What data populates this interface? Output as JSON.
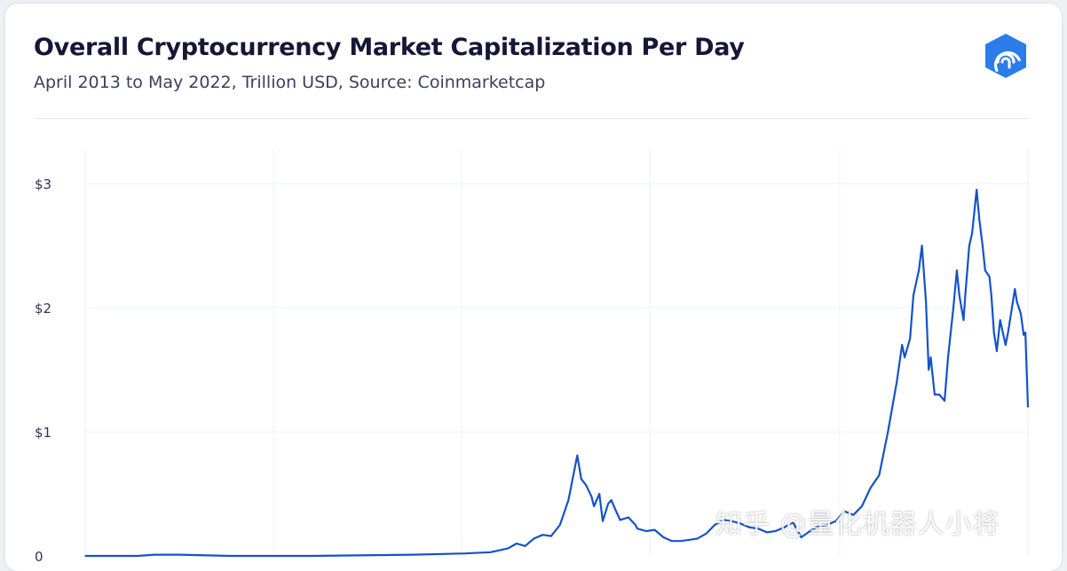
{
  "header": {
    "title": "Overall Cryptocurrency Market Capitalization Per Day",
    "subtitle": "April 2013 to May 2022, Trillion USD, Source: Coinmarketcap",
    "logo_icon": "coin-spiral-hexagon-icon"
  },
  "watermark": "知乎 @量化机器人小将",
  "colors": {
    "line": "#1652c9",
    "logo": "#2b7de9",
    "title": "#141736",
    "grid": "#eef0f6"
  },
  "chart_data": {
    "type": "line",
    "title": "Overall Cryptocurrency Market Capitalization Per Day",
    "subtitle": "April 2013 to May 2022, Trillion USD, Source: Coinmarketcap",
    "xlabel": "",
    "ylabel": "",
    "x_range": [
      "2013-04",
      "2022-05"
    ],
    "ylim": [
      0,
      3.3
    ],
    "yticks": [
      {
        "value": 0,
        "label": "0"
      },
      {
        "value": 1,
        "label": "$1"
      },
      {
        "value": 2,
        "label": "$2"
      },
      {
        "value": 3,
        "label": "$3"
      }
    ],
    "grid": true,
    "legend": "none",
    "series": [
      {
        "points": [
          [
            "2013-04",
            0.0
          ],
          [
            "2013-10",
            0.0
          ],
          [
            "2013-12",
            0.01
          ],
          [
            "2014-03",
            0.01
          ],
          [
            "2014-09",
            0.0
          ],
          [
            "2015-06",
            0.0
          ],
          [
            "2016-06",
            0.01
          ],
          [
            "2016-12",
            0.02
          ],
          [
            "2017-03",
            0.03
          ],
          [
            "2017-05",
            0.06
          ],
          [
            "2017-06",
            0.1
          ],
          [
            "2017-07",
            0.08
          ],
          [
            "2017-08",
            0.14
          ],
          [
            "2017-09",
            0.17
          ],
          [
            "2017-10",
            0.16
          ],
          [
            "2017-11",
            0.25
          ],
          [
            "2017-12",
            0.45
          ],
          [
            "2018-01",
            0.81
          ],
          [
            "2018-01-15",
            0.62
          ],
          [
            "2018-02",
            0.57
          ],
          [
            "2018-02-20",
            0.48
          ],
          [
            "2018-03",
            0.4
          ],
          [
            "2018-03-20",
            0.5
          ],
          [
            "2018-04",
            0.28
          ],
          [
            "2018-04-20",
            0.42
          ],
          [
            "2018-05",
            0.45
          ],
          [
            "2018-05-20",
            0.35
          ],
          [
            "2018-06",
            0.29
          ],
          [
            "2018-07",
            0.31
          ],
          [
            "2018-07-25",
            0.25
          ],
          [
            "2018-08",
            0.22
          ],
          [
            "2018-09",
            0.2
          ],
          [
            "2018-10",
            0.21
          ],
          [
            "2018-11",
            0.15
          ],
          [
            "2018-12",
            0.12
          ],
          [
            "2019-01",
            0.12
          ],
          [
            "2019-02",
            0.13
          ],
          [
            "2019-03",
            0.14
          ],
          [
            "2019-04",
            0.18
          ],
          [
            "2019-05",
            0.25
          ],
          [
            "2019-06",
            0.29
          ],
          [
            "2019-07",
            0.28
          ],
          [
            "2019-08",
            0.26
          ],
          [
            "2019-09",
            0.23
          ],
          [
            "2019-10",
            0.22
          ],
          [
            "2019-11",
            0.19
          ],
          [
            "2019-12",
            0.2
          ],
          [
            "2020-01",
            0.23
          ],
          [
            "2020-02",
            0.27
          ],
          [
            "2020-03",
            0.15
          ],
          [
            "2020-04",
            0.2
          ],
          [
            "2020-05",
            0.24
          ],
          [
            "2020-06",
            0.25
          ],
          [
            "2020-07",
            0.28
          ],
          [
            "2020-08",
            0.36
          ],
          [
            "2020-09",
            0.33
          ],
          [
            "2020-10",
            0.4
          ],
          [
            "2020-11",
            0.55
          ],
          [
            "2020-12",
            0.65
          ],
          [
            "2021-01",
            1.0
          ],
          [
            "2021-02",
            1.4
          ],
          [
            "2021-02-20",
            1.7
          ],
          [
            "2021-03",
            1.6
          ],
          [
            "2021-03-20",
            1.75
          ],
          [
            "2021-04",
            2.1
          ],
          [
            "2021-04-20",
            2.3
          ],
          [
            "2021-05",
            2.5
          ],
          [
            "2021-05-15",
            2.05
          ],
          [
            "2021-05-25",
            1.5
          ],
          [
            "2021-06",
            1.6
          ],
          [
            "2021-06-15",
            1.3
          ],
          [
            "2021-07",
            1.3
          ],
          [
            "2021-07-20",
            1.25
          ],
          [
            "2021-08",
            1.6
          ],
          [
            "2021-08-20",
            2.0
          ],
          [
            "2021-09",
            2.3
          ],
          [
            "2021-09-10",
            2.1
          ],
          [
            "2021-09-25",
            1.9
          ],
          [
            "2021-10",
            2.1
          ],
          [
            "2021-10-15",
            2.5
          ],
          [
            "2021-10-25",
            2.6
          ],
          [
            "2021-11",
            2.75
          ],
          [
            "2021-11-10",
            2.95
          ],
          [
            "2021-11-20",
            2.7
          ],
          [
            "2021-12",
            2.5
          ],
          [
            "2021-12-10",
            2.3
          ],
          [
            "2021-12-25",
            2.25
          ],
          [
            "2022-01",
            2.1
          ],
          [
            "2022-01-10",
            1.8
          ],
          [
            "2022-01-20",
            1.65
          ],
          [
            "2022-02",
            1.9
          ],
          [
            "2022-02-20",
            1.7
          ],
          [
            "2022-03",
            1.8
          ],
          [
            "2022-03-25",
            2.15
          ],
          [
            "2022-04",
            2.05
          ],
          [
            "2022-04-15",
            1.95
          ],
          [
            "2022-04-25",
            1.78
          ],
          [
            "2022-05",
            1.8
          ],
          [
            "2022-05-10",
            1.2
          ]
        ]
      }
    ]
  }
}
